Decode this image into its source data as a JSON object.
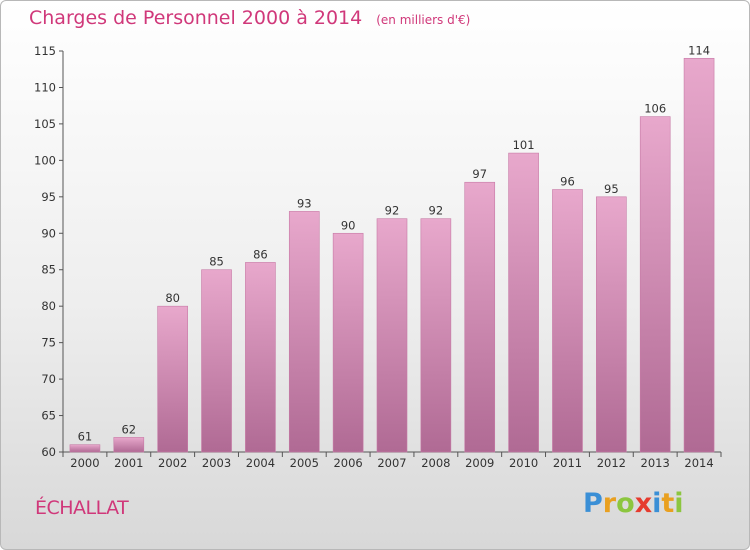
{
  "title": "Charges de Personnel 2000 à 2014",
  "unit": "(en milliers d'€)",
  "commune": "ÉCHALLAT",
  "logo": {
    "letters": [
      "P",
      "r",
      "o",
      "x",
      "i",
      "t",
      "i"
    ]
  },
  "colors": {
    "bar_top": "#e8a8cc",
    "bar_bottom": "#b06a94",
    "title": "#d0387a"
  },
  "chart_data": {
    "type": "bar",
    "title": "Charges de Personnel 2000 à 2014",
    "categories": [
      "2000",
      "2001",
      "2002",
      "2003",
      "2004",
      "2005",
      "2006",
      "2007",
      "2008",
      "2009",
      "2010",
      "2011",
      "2012",
      "2013",
      "2014"
    ],
    "values": [
      61,
      62,
      80,
      85,
      86,
      93,
      90,
      92,
      92,
      97,
      101,
      96,
      95,
      106,
      114
    ],
    "ylim": [
      60,
      115
    ],
    "yticks": [
      60,
      65,
      70,
      75,
      80,
      85,
      90,
      95,
      100,
      105,
      110,
      115
    ],
    "grid": false,
    "legend": "none"
  }
}
